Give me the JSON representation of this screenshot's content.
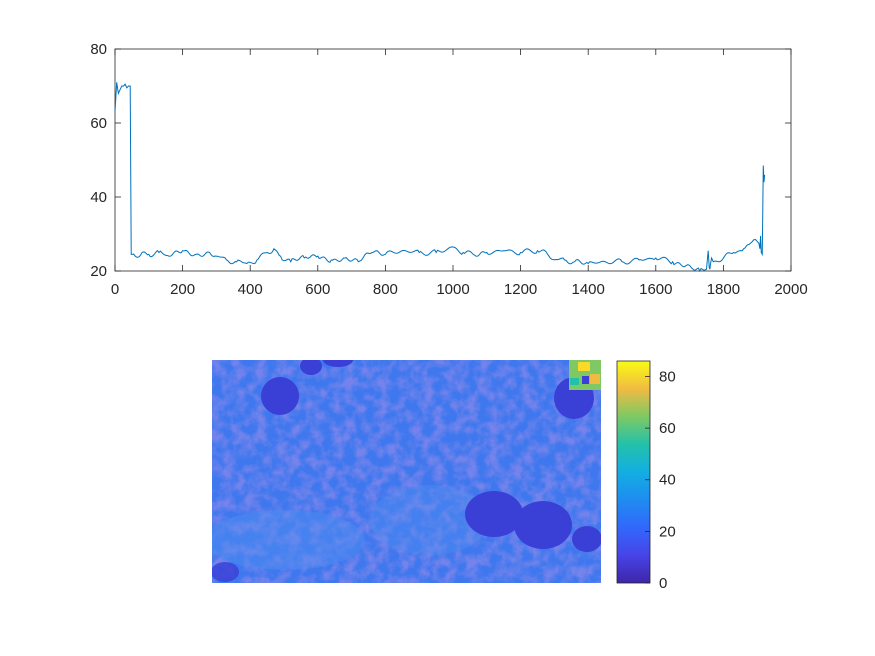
{
  "chart_data": [
    {
      "type": "line",
      "title": "",
      "xlabel": "",
      "ylabel": "",
      "xlim": [
        0,
        2000
      ],
      "ylim": [
        20,
        80
      ],
      "x_ticks": [
        0,
        200,
        400,
        600,
        800,
        1000,
        1200,
        1400,
        1600,
        1800,
        2000
      ],
      "y_ticks": [
        20,
        40,
        60,
        80
      ],
      "grid": false,
      "series": [
        {
          "color": "#0072BD",
          "x": [
            0,
            5,
            10,
            15,
            20,
            25,
            30,
            35,
            40,
            45,
            48,
            50,
            60,
            80,
            100,
            130,
            160,
            200,
            240,
            280,
            300,
            330,
            360,
            390,
            420,
            450,
            470,
            490,
            520,
            560,
            600,
            640,
            680,
            720,
            760,
            800,
            850,
            900,
            950,
            1000,
            1030,
            1060,
            1100,
            1150,
            1200,
            1250,
            1280,
            1300,
            1330,
            1360,
            1400,
            1450,
            1500,
            1550,
            1600,
            1650,
            1690,
            1710,
            1730,
            1750,
            1755,
            1758,
            1760,
            1762,
            1765,
            1770,
            1800,
            1830,
            1860,
            1880,
            1895,
            1900,
            1905,
            1908,
            1910,
            1912,
            1915,
            1918,
            1920,
            1922
          ],
          "y": [
            63,
            71,
            68,
            69,
            70,
            70,
            70.5,
            69.5,
            70,
            70,
            24.5,
            24.5,
            24,
            25,
            24.5,
            25,
            24,
            25.5,
            24.5,
            25,
            24,
            23,
            22.5,
            22,
            23,
            25,
            26,
            24,
            22.5,
            23.5,
            24,
            23,
            23.5,
            22.5,
            25,
            24.5,
            25.5,
            25,
            25,
            26.5,
            25,
            24.5,
            25,
            25.5,
            25,
            25.5,
            24.5,
            23,
            23,
            22.5,
            22,
            22.5,
            22.5,
            23,
            23.5,
            22.5,
            21.5,
            20.5,
            20,
            20.5,
            25.5,
            21,
            20.5,
            22,
            23.5,
            22.5,
            23.5,
            25,
            26,
            27.5,
            28.5,
            28,
            27.5,
            26,
            29.5,
            25,
            24.5,
            48.5,
            44,
            46
          ]
        }
      ]
    },
    {
      "type": "heatmap",
      "title": "",
      "colorbar": {
        "range": [
          0,
          86
        ],
        "ticks": [
          0,
          20,
          40,
          60,
          80
        ],
        "colormap": "parula"
      },
      "description_colors": {
        "background": "#3f78ee",
        "low": "#3a3fd6",
        "high": "#f9d92a"
      }
    }
  ]
}
